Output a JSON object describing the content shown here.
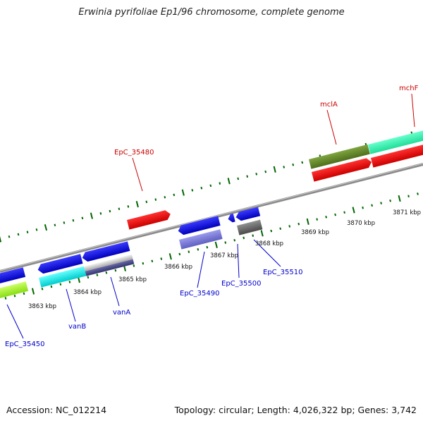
{
  "title": "Erwinia pyrifoliae Ep1/96 chromosome, complete genome",
  "footer": {
    "accession": "Accession: NC_012214",
    "summary": "Topology: circular; Length: 4,026,322 bp; Genes: 3,742"
  },
  "colors": {
    "label_forward": "#cc0000",
    "label_reverse": "#0000cc",
    "tick": "#006600",
    "backbone": "#888888"
  },
  "ruler_labels": [
    "3863 kbp",
    "3864 kbp",
    "3865 kbp",
    "3866 kbp",
    "3867 kbp",
    "3868 kbp",
    "3869 kbp",
    "3870 kbp",
    "3871 kbp"
  ],
  "gene_labels": [
    {
      "name": "mclA",
      "strand": "forward"
    },
    {
      "name": "mchF",
      "strand": "forward"
    },
    {
      "name": "EpC_35480",
      "strand": "forward"
    },
    {
      "name": "EpC_35450",
      "strand": "reverse"
    },
    {
      "name": "vanB",
      "strand": "reverse"
    },
    {
      "name": "vanA",
      "strand": "reverse"
    },
    {
      "name": "EpC_35490",
      "strand": "reverse"
    },
    {
      "name": "EpC_35500",
      "strand": "reverse"
    },
    {
      "name": "EpC_35510",
      "strand": "reverse"
    }
  ]
}
